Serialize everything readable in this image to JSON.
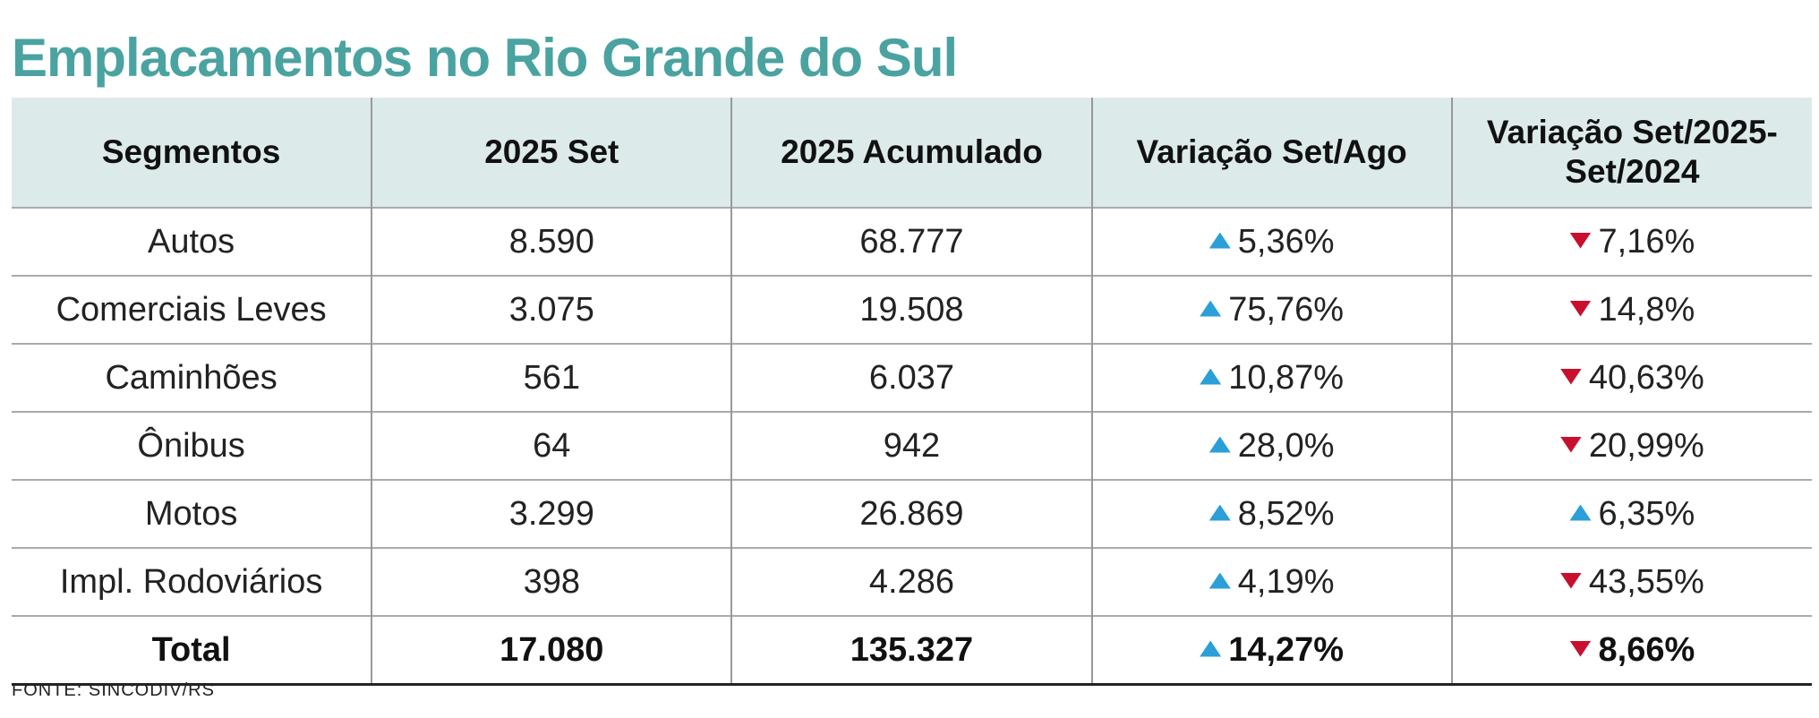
{
  "title": "Emplacamentos no Rio Grande do Sul",
  "table": {
    "headers": [
      "Segmentos",
      "2025 Set",
      "2025 Acumulado",
      "Variação Set/Ago",
      "Variação Set/2025-Set/2024"
    ],
    "rows": [
      [
        "Autos",
        "8.590",
        "68.777",
        "5,36%",
        "7,16%"
      ],
      [
        "Comerciais Leves",
        "3.075",
        "19.508",
        "75,76%",
        "14,8%"
      ],
      [
        "Caminhões",
        "561",
        "6.037",
        "10,87%",
        "40,63%"
      ],
      [
        "Ônibus",
        "64",
        "942",
        "28,0%",
        "20,99%"
      ],
      [
        "Motos",
        "3.299",
        "26.869",
        "8,52%",
        "6,35%"
      ],
      [
        "Impl. Rodoviários",
        "398",
        "4.286",
        "4,19%",
        "43,55%"
      ],
      [
        "Total",
        "17.080",
        "135.327",
        "14,27%",
        "8,66%"
      ]
    ]
  },
  "source": "FONTE: SINCODIV/RS"
}
